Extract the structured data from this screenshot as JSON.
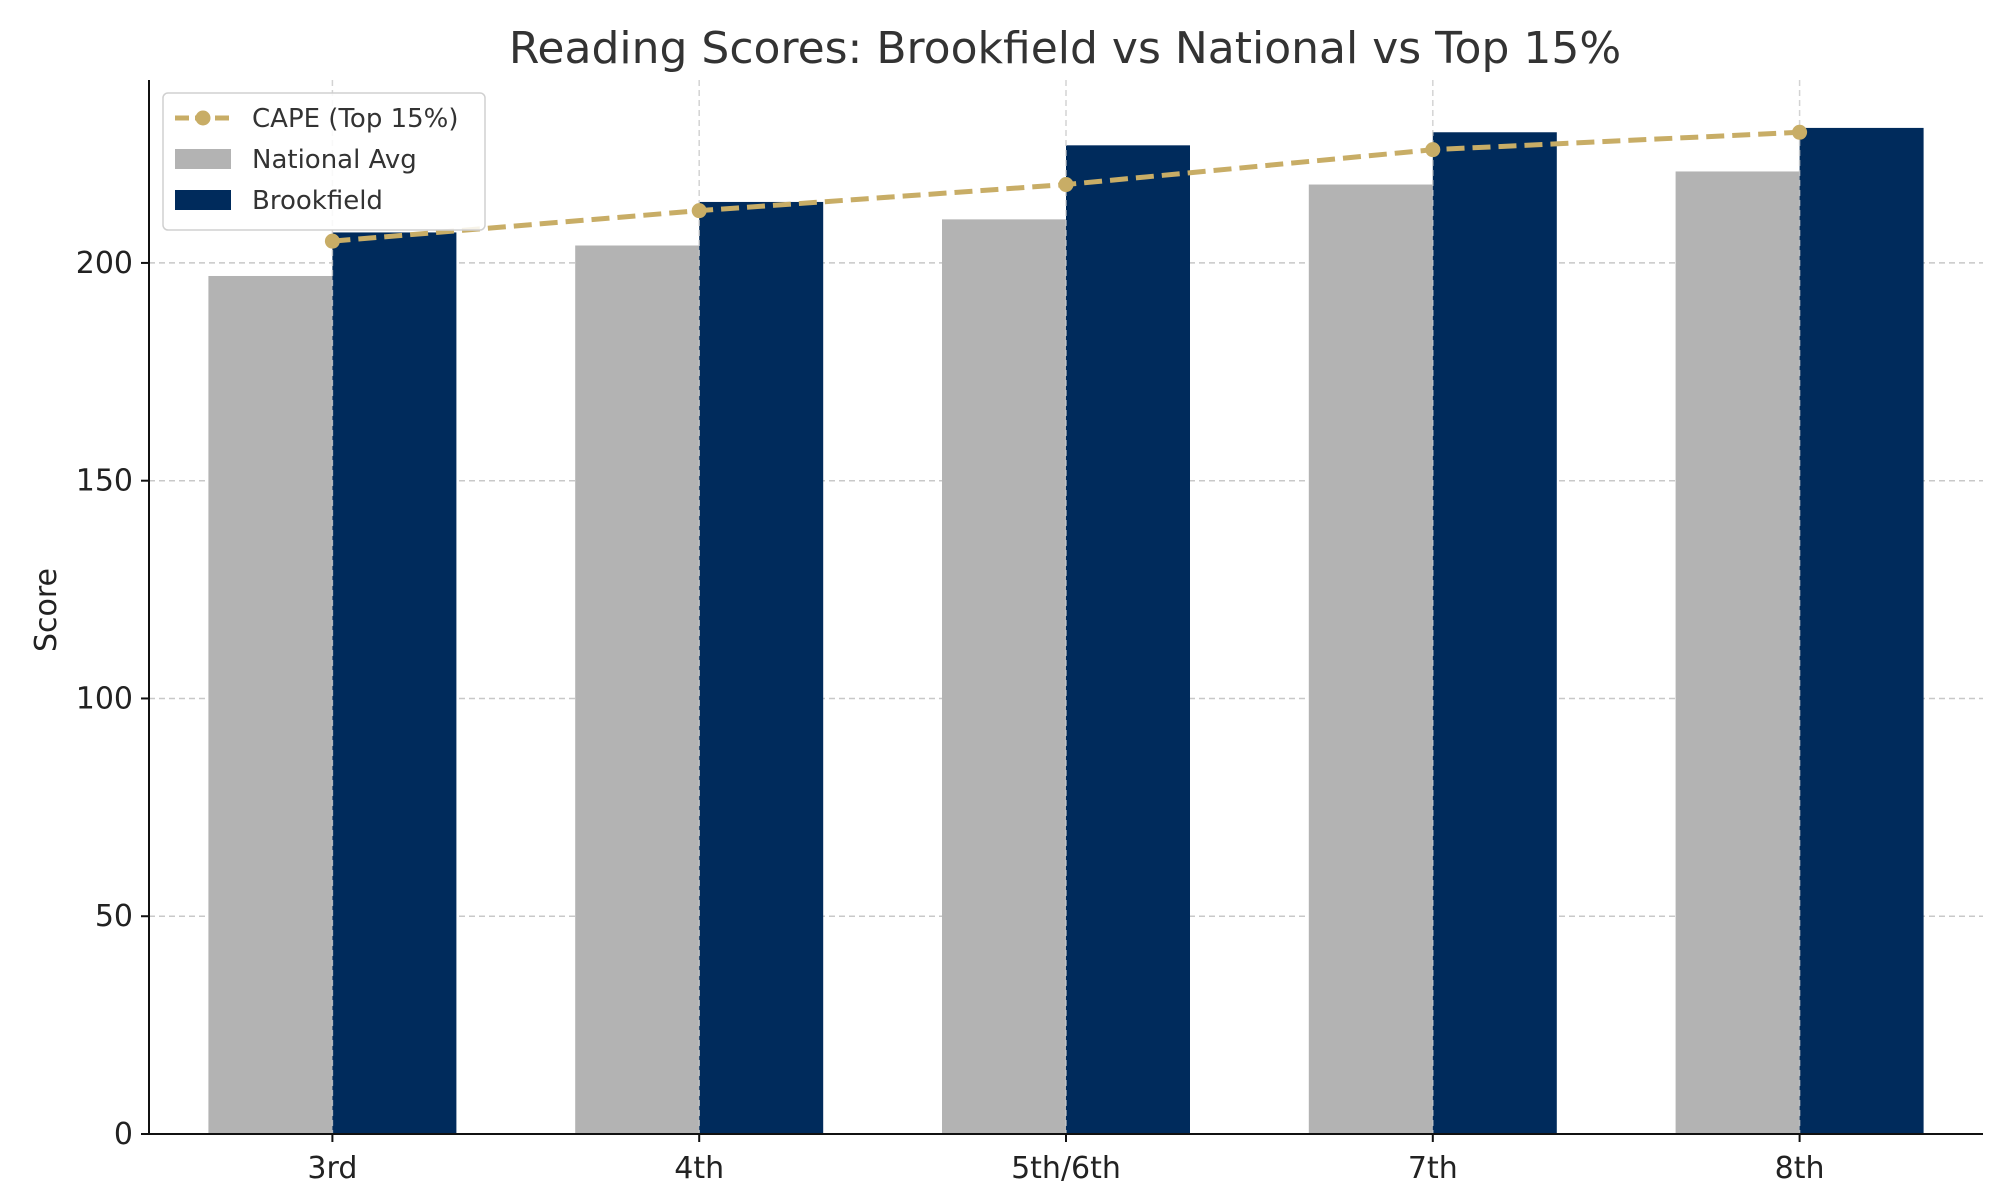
{
  "chart_data": {
    "type": "bar",
    "title": "Reading Scores: Brookfield vs National vs Top 15%",
    "xlabel": "",
    "ylabel": "Score",
    "categories": [
      "3rd",
      "4th",
      "5th/6th",
      "7th",
      "8th"
    ],
    "ylim": [
      0,
      242
    ],
    "yticks": [
      0,
      50,
      100,
      150,
      200
    ],
    "grid": true,
    "legend_position": "top-left",
    "series": [
      {
        "name": "National Avg",
        "type": "bar",
        "color": "#b3b3b3",
        "values": [
          197,
          204,
          210,
          218,
          221
        ]
      },
      {
        "name": "Brookfield",
        "type": "bar",
        "color": "#002b5c",
        "values": [
          207,
          214,
          227,
          230,
          231
        ]
      },
      {
        "name": "CAPE (Top 15%)",
        "type": "line",
        "style": "dashed",
        "marker": "circle",
        "color": "#c8ad66",
        "values": [
          205,
          212,
          218,
          226,
          230
        ]
      }
    ]
  }
}
